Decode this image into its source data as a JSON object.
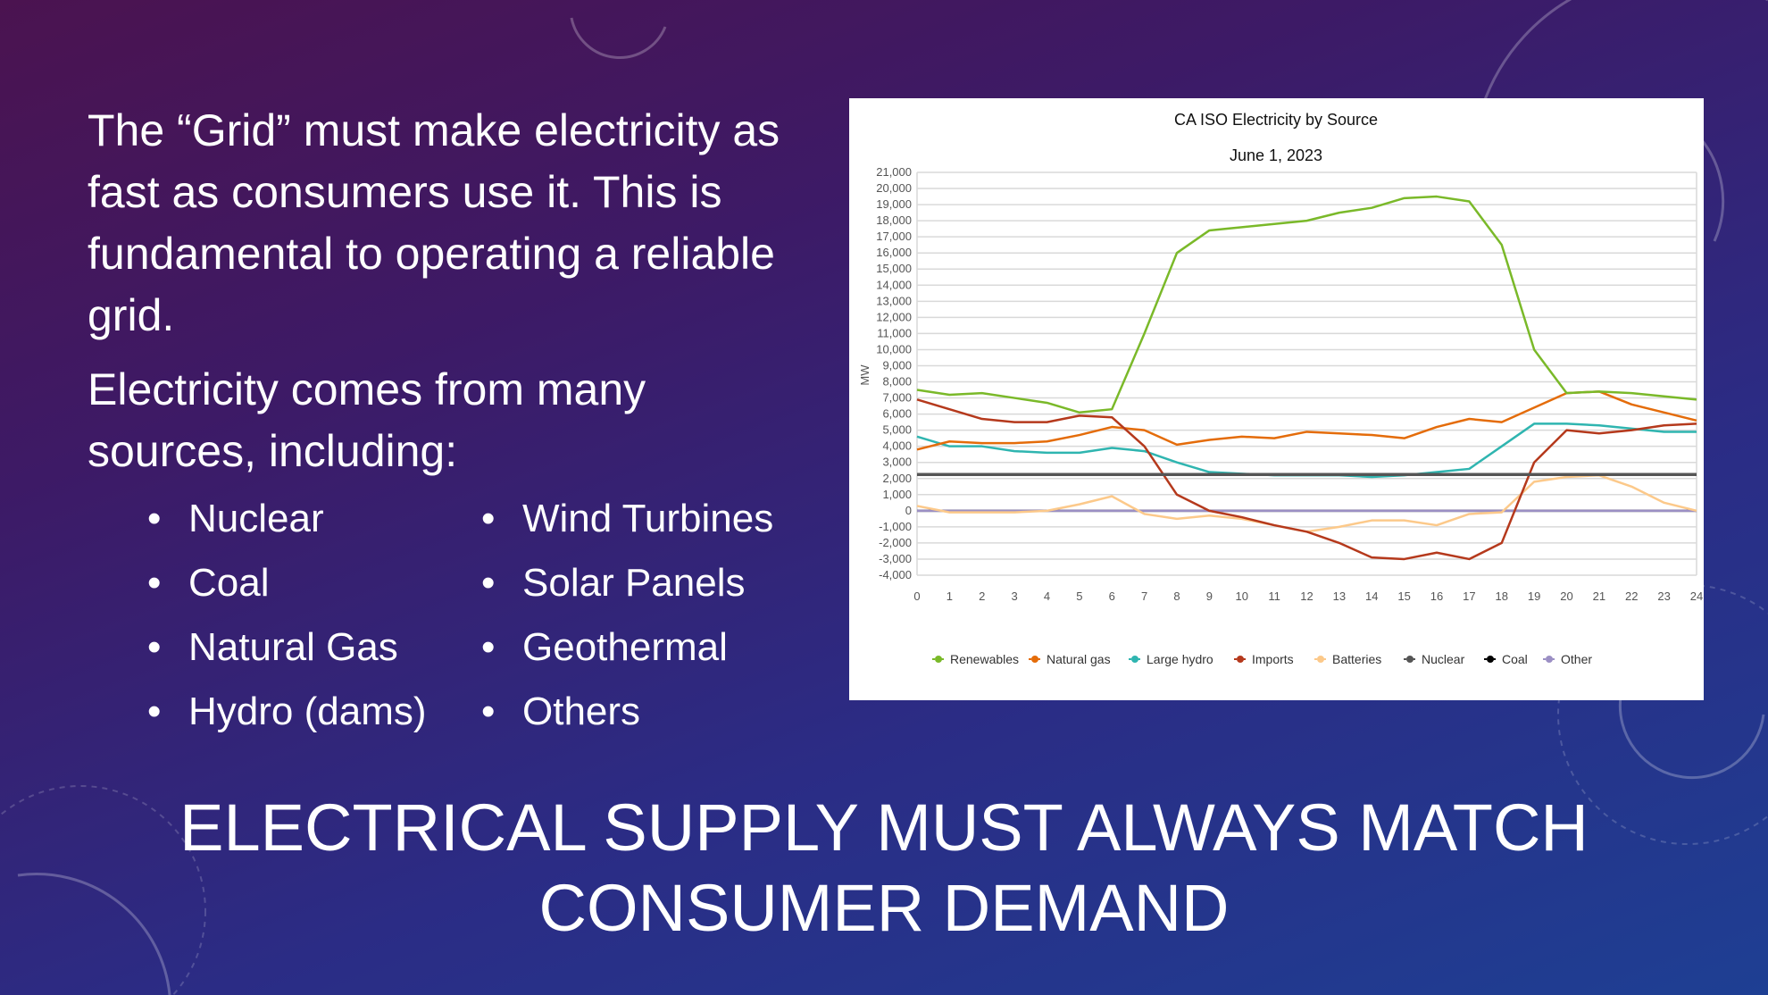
{
  "slide": {
    "paragraph1": "The “Grid” must make electricity as fast as consumers use it. This is fundamental to operating a reliable grid.",
    "paragraph2": "Electricity comes from many sources, including:",
    "bullets_left": [
      "Nuclear",
      "Coal",
      "Natural Gas",
      "Hydro (dams)"
    ],
    "bullets_right": [
      "Wind Turbines",
      "Solar Panels",
      "Geothermal",
      "Others"
    ],
    "bullet_char": "•",
    "headline": "Electrical supply must always match consumer demand"
  },
  "chart_data": {
    "type": "line",
    "title": "CA ISO Electricity by Source",
    "subtitle": "June 1, 2023",
    "ylabel": "MW",
    "xlabel": "",
    "xlim": [
      0,
      24
    ],
    "ylim": [
      -4000,
      21000
    ],
    "ytick_step": 1000,
    "grid": true,
    "legend_position": "bottom",
    "x": [
      0,
      1,
      2,
      3,
      4,
      5,
      6,
      7,
      8,
      9,
      10,
      11,
      12,
      13,
      14,
      15,
      16,
      17,
      18,
      19,
      20,
      21,
      22,
      23,
      24
    ],
    "series": [
      {
        "name": "Renewables",
        "color": "#7ab929",
        "values": [
          7500,
          7200,
          7300,
          7000,
          6700,
          6100,
          6300,
          11000,
          16000,
          17400,
          17600,
          17800,
          18000,
          18500,
          18800,
          19400,
          19500,
          19200,
          16500,
          10000,
          7300,
          7400,
          7300,
          7100,
          6900
        ]
      },
      {
        "name": "Natural gas",
        "color": "#e46c0a",
        "values": [
          3800,
          4300,
          4200,
          4200,
          4300,
          4700,
          5200,
          5000,
          4100,
          4400,
          4600,
          4500,
          4900,
          4800,
          4700,
          4500,
          5200,
          5700,
          5500,
          6400,
          7300,
          7400,
          6600,
          6100,
          5600
        ]
      },
      {
        "name": "Large hydro",
        "color": "#2fb5b0",
        "values": [
          4600,
          4000,
          4000,
          3700,
          3600,
          3600,
          3900,
          3700,
          3000,
          2400,
          2300,
          2200,
          2200,
          2200,
          2100,
          2200,
          2400,
          2600,
          4000,
          5400,
          5400,
          5300,
          5100,
          4900,
          4900
        ]
      },
      {
        "name": "Imports",
        "color": "#b5391c",
        "values": [
          6900,
          6300,
          5700,
          5500,
          5500,
          5900,
          5800,
          4000,
          1000,
          0,
          -400,
          -900,
          -1300,
          -2000,
          -2900,
          -3000,
          -2600,
          -3000,
          -2000,
          3000,
          5000,
          4800,
          5000,
          5300,
          5400
        ]
      },
      {
        "name": "Batteries",
        "color": "#fcc98a",
        "values": [
          300,
          -100,
          -100,
          -100,
          0,
          400,
          900,
          -200,
          -500,
          -300,
          -500,
          -900,
          -1300,
          -1000,
          -600,
          -600,
          -900,
          -200,
          -100,
          1800,
          2100,
          2200,
          1500,
          500,
          0
        ]
      },
      {
        "name": "Nuclear",
        "color": "#555555",
        "values": [
          2250,
          2250,
          2250,
          2250,
          2250,
          2250,
          2250,
          2250,
          2250,
          2250,
          2250,
          2250,
          2250,
          2250,
          2250,
          2250,
          2250,
          2250,
          2250,
          2250,
          2250,
          2250,
          2250,
          2250,
          2250
        ]
      },
      {
        "name": "Coal",
        "color": "#000000",
        "values": [
          0,
          0,
          0,
          0,
          0,
          0,
          0,
          0,
          0,
          0,
          0,
          0,
          0,
          0,
          0,
          0,
          0,
          0,
          0,
          0,
          0,
          0,
          0,
          0,
          0
        ]
      },
      {
        "name": "Other",
        "color": "#9b8fc4",
        "values": [
          0,
          0,
          0,
          0,
          0,
          0,
          0,
          0,
          0,
          0,
          0,
          0,
          0,
          0,
          0,
          0,
          0,
          0,
          0,
          0,
          0,
          0,
          0,
          0,
          0
        ]
      }
    ]
  }
}
